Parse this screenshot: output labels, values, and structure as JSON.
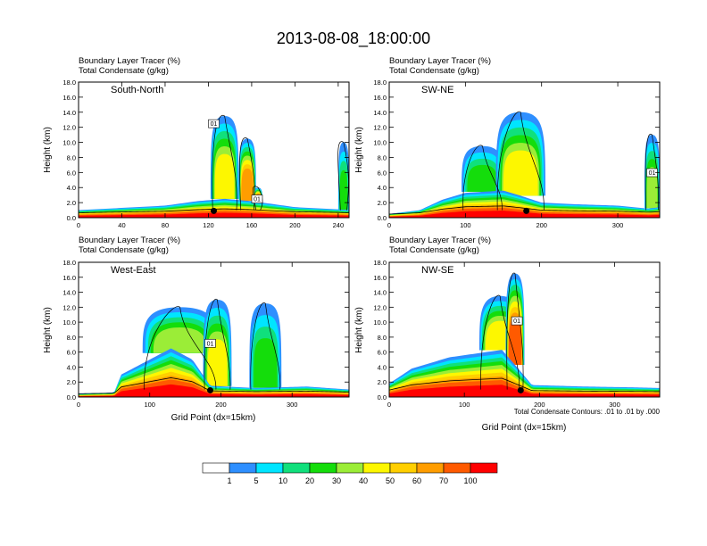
{
  "figure": {
    "title": "2013-08-08_18:00:00",
    "xlabel": "Grid Point (dx=15km)",
    "ylabel": "Height (km)",
    "contour_note": "Total Condensate Contours: .01 to .01 by .000"
  },
  "chart_data": [
    {
      "type": "heatmap",
      "panel": "South-North",
      "subtitle_line1": "Boundary Layer Tracer   (%)",
      "subtitle_line2": "Total Condensate   (g/kg)",
      "xlim": [
        0,
        250
      ],
      "xticks": [
        0,
        40,
        80,
        120,
        160,
        200,
        240
      ],
      "ylim": [
        0,
        18
      ],
      "yticks": [
        "0.0",
        "2.0",
        "4.0",
        "6.0",
        "8.0",
        "10.0",
        "12.0",
        "14.0",
        "16.0",
        "18.0"
      ],
      "profile": [
        [
          0,
          1.0
        ],
        [
          40,
          1.3
        ],
        [
          80,
          1.6
        ],
        [
          110,
          2.2
        ],
        [
          135,
          2.5
        ],
        [
          160,
          2.2
        ],
        [
          200,
          1.4
        ],
        [
          240,
          1.1
        ],
        [
          250,
          1.0
        ]
      ],
      "plumes": [
        {
          "x": [
            122,
            148
          ],
          "ytop": 13.5,
          "pct": 45
        },
        {
          "x": [
            148,
            164
          ],
          "ytop": 10.5,
          "pct": 60
        },
        {
          "x": [
            162,
            170
          ],
          "ytop": 4.0,
          "pct": 80
        },
        {
          "x": [
            240,
            250
          ],
          "ytop": 10.0,
          "pct": 20
        }
      ],
      "marker": {
        "x": 125,
        "y": 0.9
      },
      "contour_labels": [
        {
          "x": 125,
          "y": 12.3,
          "text": "01"
        },
        {
          "x": 165,
          "y": 2.3,
          "text": "01"
        }
      ]
    },
    {
      "type": "heatmap",
      "panel": "SW-NE",
      "subtitle_line1": "Boundary Layer Tracer   (%)",
      "subtitle_line2": "Total Condensate   (g/kg)",
      "xlim": [
        0,
        355
      ],
      "xticks": [
        0,
        100,
        200,
        300
      ],
      "ylim": [
        0,
        18
      ],
      "yticks": [
        "0.0",
        "2.0",
        "4.0",
        "6.0",
        "8.0",
        "10.0",
        "12.0",
        "14.0",
        "16.0",
        "18.0"
      ],
      "profile": [
        [
          0,
          0.5
        ],
        [
          40,
          1.0
        ],
        [
          70,
          2.4
        ],
        [
          100,
          3.3
        ],
        [
          150,
          3.6
        ],
        [
          170,
          3.0
        ],
        [
          200,
          2.0
        ],
        [
          240,
          1.8
        ],
        [
          300,
          1.6
        ],
        [
          340,
          1.2
        ],
        [
          355,
          1.4
        ]
      ],
      "plumes": [
        {
          "x": [
            95,
            150
          ],
          "ytop": 9.5,
          "pct": 20
        },
        {
          "x": [
            140,
            205
          ],
          "ytop": 14.0,
          "pct": 40
        },
        {
          "x": [
            335,
            355
          ],
          "ytop": 11.0,
          "pct": 35
        }
      ],
      "marker": {
        "x": 180,
        "y": 0.9
      },
      "contour_labels": [
        {
          "x": 345,
          "y": 5.8,
          "text": "01"
        }
      ]
    },
    {
      "type": "heatmap",
      "panel": "West-East",
      "subtitle_line1": "Boundary Layer Tracer   (%)",
      "subtitle_line2": "Total Condensate   (g/kg)",
      "xlim": [
        0,
        380
      ],
      "xticks": [
        0,
        100,
        200,
        300
      ],
      "ylim": [
        0,
        18
      ],
      "yticks": [
        "0.0",
        "2.0",
        "4.0",
        "6.0",
        "8.0",
        "10.0",
        "12.0",
        "14.0",
        "16.0",
        "18.0"
      ],
      "profile": [
        [
          0,
          0.4
        ],
        [
          50,
          0.6
        ],
        [
          60,
          3.0
        ],
        [
          90,
          4.5
        ],
        [
          130,
          6.5
        ],
        [
          160,
          5.0
        ],
        [
          185,
          1.5
        ],
        [
          250,
          1.2
        ],
        [
          320,
          1.4
        ],
        [
          380,
          1.0
        ]
      ],
      "plumes": [
        {
          "x": [
            90,
            195
          ],
          "ytop": 12.0,
          "pct": 30
        },
        {
          "x": [
            175,
            215
          ],
          "ytop": 13.0,
          "pct": 40
        },
        {
          "x": [
            240,
            285
          ],
          "ytop": 12.5,
          "pct": 20
        }
      ],
      "marker": {
        "x": 185,
        "y": 0.9
      },
      "contour_labels": [
        {
          "x": 185,
          "y": 7.0,
          "text": "01"
        }
      ]
    },
    {
      "type": "heatmap",
      "panel": "NW-SE",
      "subtitle_line1": "Boundary Layer Tracer   (%)",
      "subtitle_line2": "Total Condensate   (g/kg)",
      "xlim": [
        0,
        360
      ],
      "xticks": [
        0,
        100,
        200,
        300
      ],
      "ylim": [
        0,
        18
      ],
      "yticks": [
        "0.0",
        "2.0",
        "4.0",
        "6.0",
        "8.0",
        "10.0",
        "12.0",
        "14.0",
        "16.0",
        "18.0"
      ],
      "profile": [
        [
          0,
          1.8
        ],
        [
          30,
          3.8
        ],
        [
          80,
          5.3
        ],
        [
          150,
          6.3
        ],
        [
          170,
          4.0
        ],
        [
          190,
          1.6
        ],
        [
          260,
          1.4
        ],
        [
          320,
          1.3
        ],
        [
          360,
          1.2
        ]
      ],
      "plumes": [
        {
          "x": [
            120,
            175
          ],
          "ytop": 13.5,
          "pct": 40
        },
        {
          "x": [
            155,
            180
          ],
          "ytop": 16.5,
          "pct": 70
        }
      ],
      "marker": {
        "x": 175,
        "y": 0.9
      },
      "contour_labels": [
        {
          "x": 170,
          "y": 10.0,
          "text": "01"
        }
      ]
    }
  ],
  "legend": {
    "labels": [
      "1",
      "5",
      "10",
      "20",
      "30",
      "40",
      "50",
      "60",
      "70",
      "100"
    ],
    "colors": [
      "#ffffff",
      "#2e8fff",
      "#00e5ff",
      "#10e07c",
      "#14dd0b",
      "#9bed37",
      "#fdf700",
      "#ffcf00",
      "#ff9d00",
      "#ff5a00",
      "#ff0000"
    ]
  }
}
